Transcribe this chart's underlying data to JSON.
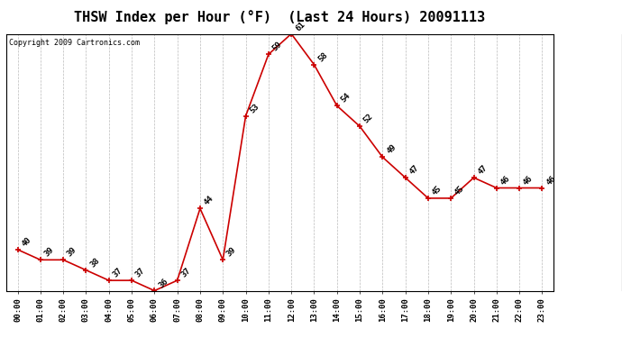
{
  "title": "THSW Index per Hour (°F)  (Last 24 Hours) 20091113",
  "copyright": "Copyright 2009 Cartronics.com",
  "hours": [
    "00:00",
    "01:00",
    "02:00",
    "03:00",
    "04:00",
    "05:00",
    "06:00",
    "07:00",
    "08:00",
    "09:00",
    "10:00",
    "11:00",
    "12:00",
    "13:00",
    "14:00",
    "15:00",
    "16:00",
    "17:00",
    "18:00",
    "19:00",
    "20:00",
    "21:00",
    "22:00",
    "23:00"
  ],
  "values": [
    40,
    39,
    39,
    38,
    37,
    37,
    36,
    37,
    44,
    39,
    53,
    59,
    61,
    58,
    54,
    52,
    49,
    47,
    45,
    45,
    47,
    46,
    46,
    46
  ],
  "ylim_min": 36.0,
  "ylim_max": 61.0,
  "yticks": [
    36.0,
    38.1,
    40.2,
    42.2,
    44.3,
    46.4,
    48.5,
    50.6,
    52.7,
    54.8,
    56.8,
    58.9,
    61.0
  ],
  "line_color": "#cc0000",
  "marker_color": "#cc0000",
  "bg_color": "#ffffff",
  "grid_color": "#bbbbbb",
  "title_fontsize": 11,
  "label_fontsize": 6.5,
  "annot_fontsize": 6.5,
  "copyright_fontsize": 6
}
